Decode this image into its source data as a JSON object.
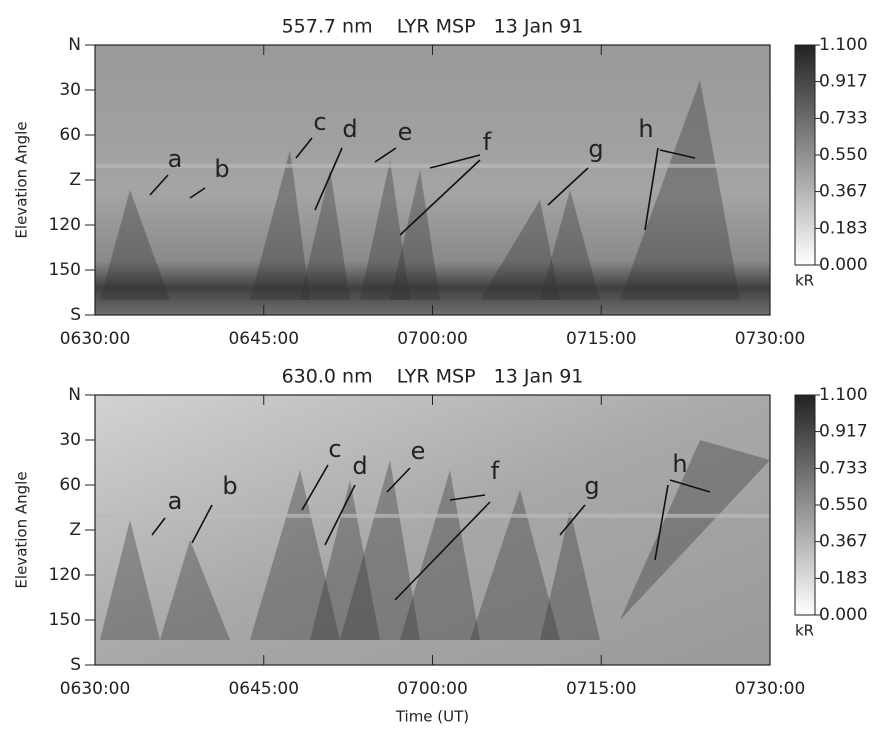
{
  "chart_data": [
    {
      "type": "keogram",
      "title": "557.7 nm    LYR MSP   13 Jan 91",
      "ylabel": "Elevation Angle",
      "xlim": [
        390,
        450
      ],
      "xticks": [
        {
          "value": 390,
          "label": "0630:00"
        },
        {
          "value": 405,
          "label": "0645:00"
        },
        {
          "value": 420,
          "label": "0700:00"
        },
        {
          "value": 435,
          "label": "0715:00"
        },
        {
          "value": 450,
          "label": "0730:00"
        }
      ],
      "ylim": [
        0,
        180
      ],
      "yticks": [
        {
          "value": 0,
          "label": "N"
        },
        30,
        60,
        {
          "value": 90,
          "label": "Z"
        },
        120,
        150,
        {
          "value": 180,
          "label": "S"
        }
      ],
      "colorbar": {
        "lim": [
          0,
          1.1
        ],
        "ticks": [
          {
            "value": 1.1,
            "label": "1.100"
          },
          0.917,
          0.733,
          {
            "value": 0.55,
            "label": "0.550"
          },
          0.367,
          0.183,
          {
            "value": 0,
            "label": "0.000"
          }
        ],
        "unit": "kR"
      },
      "annotations": [
        "a",
        "b",
        "c",
        "d",
        "e",
        "f",
        "g",
        "h"
      ]
    },
    {
      "type": "keogram",
      "title": "630.0 nm    LYR MSP   13 Jan 91",
      "ylabel": "Elevation Angle",
      "xlabel": "Time (UT)",
      "xlim": [
        390,
        450
      ],
      "xticks": [
        {
          "value": 390,
          "label": "0630:00"
        },
        {
          "value": 405,
          "label": "0645:00"
        },
        {
          "value": 420,
          "label": "0700:00"
        },
        {
          "value": 435,
          "label": "0715:00"
        },
        {
          "value": 450,
          "label": "0730:00"
        }
      ],
      "ylim": [
        0,
        180
      ],
      "yticks": [
        {
          "value": 0,
          "label": "N"
        },
        30,
        60,
        {
          "value": 90,
          "label": "Z"
        },
        120,
        150,
        {
          "value": 180,
          "label": "S"
        }
      ],
      "colorbar": {
        "lim": [
          0,
          1.1
        ],
        "ticks": [
          {
            "value": 1.1,
            "label": "1.100"
          },
          0.917,
          0.733,
          {
            "value": 0.55,
            "label": "0.550"
          },
          0.367,
          0.183,
          {
            "value": 0,
            "label": "0.000"
          }
        ],
        "unit": "kR"
      },
      "annotations": [
        "a",
        "b",
        "c",
        "d",
        "e",
        "f",
        "g",
        "h"
      ]
    }
  ]
}
